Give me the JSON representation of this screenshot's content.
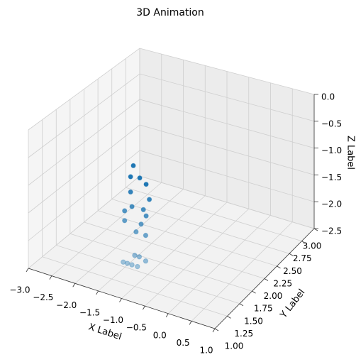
{
  "chart_data": {
    "type": "scatter3d",
    "title": "3D Animation",
    "xlabel": "X Label",
    "ylabel": "Y Label",
    "zlabel": "Z Label",
    "color": "#1f77b4",
    "grid": true,
    "x": [
      -1.4,
      -1.46,
      -1.26,
      -1.12,
      -1.46,
      -1.05,
      -1.43,
      -1.18,
      -1.59,
      -1.12,
      -1.59,
      -1.23,
      -1.34,
      -1.13,
      -1.37,
      -1.27,
      -1.13,
      -1.62,
      -1.53,
      -1.31,
      -1.43
    ],
    "y": [
      1.57,
      1.57,
      1.57,
      1.57,
      1.57,
      1.57,
      1.57,
      1.57,
      1.57,
      1.57,
      1.57,
      1.57,
      1.57,
      1.57,
      1.57,
      1.57,
      1.57,
      1.57,
      1.57,
      1.57,
      1.57
    ],
    "z": [
      -0.67,
      -0.89,
      -0.86,
      -0.94,
      -1.17,
      -1.2,
      -1.43,
      -1.42,
      -1.55,
      -1.52,
      -1.73,
      -1.7,
      -1.87,
      -1.88,
      -2.31,
      -2.31,
      -2.35,
      -2.5,
      -2.5,
      -2.5,
      -2.5
    ],
    "xlim": [
      -3,
      1
    ],
    "ylim": [
      1,
      3
    ],
    "zlim": [
      -2.5,
      0
    ],
    "xticks": [
      {
        "value": -3,
        "label": "−3.0"
      },
      {
        "value": -2.5,
        "label": "−2.5"
      },
      {
        "value": -2,
        "label": "−2.0"
      },
      {
        "value": -1.5,
        "label": "−1.5"
      },
      {
        "value": -1,
        "label": "−1.0"
      },
      {
        "value": -0.5,
        "label": "−0.5"
      },
      {
        "value": 0,
        "label": "0.0"
      },
      {
        "value": 0.5,
        "label": "0.5"
      },
      {
        "value": 1,
        "label": "1.0"
      }
    ],
    "yticks": [
      {
        "value": 1,
        "label": "1.00"
      },
      {
        "value": 1.25,
        "label": "1.25"
      },
      {
        "value": 1.5,
        "label": "1.50"
      },
      {
        "value": 1.75,
        "label": "1.75"
      },
      {
        "value": 2,
        "label": "2.00"
      },
      {
        "value": 2.25,
        "label": "2.25"
      },
      {
        "value": 2.5,
        "label": "2.50"
      },
      {
        "value": 2.75,
        "label": "2.75"
      },
      {
        "value": 3,
        "label": "3.00"
      }
    ],
    "zticks": [
      {
        "value": -2.5,
        "label": "−2.5"
      },
      {
        "value": -2,
        "label": "−2.0"
      },
      {
        "value": -1.5,
        "label": "−1.5"
      },
      {
        "value": -1,
        "label": "−1.0"
      },
      {
        "value": -0.5,
        "label": "−0.5"
      },
      {
        "value": 0,
        "label": "0.0"
      }
    ]
  }
}
